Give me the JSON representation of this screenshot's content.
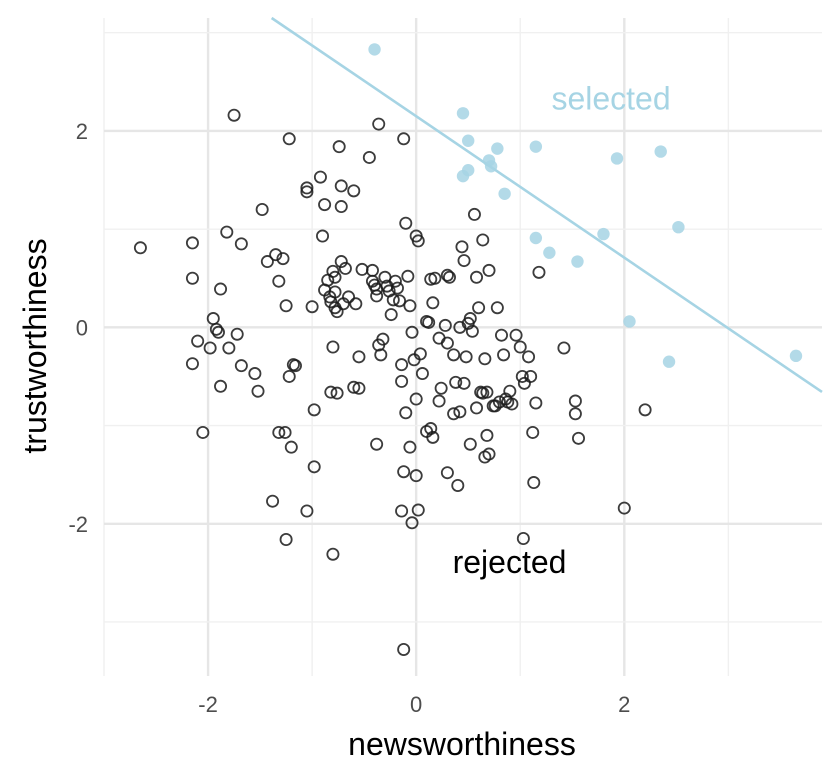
{
  "chart_data": {
    "type": "scatter",
    "xlabel": "newsworthiness",
    "ylabel": "trustworthiness",
    "xlim": [
      -3.0,
      3.9
    ],
    "ylim": [
      -3.55,
      3.15
    ],
    "x_ticks": [
      -2,
      0,
      2
    ],
    "y_ticks": [
      -2,
      0,
      2
    ],
    "x_tick_labels": [
      "-2",
      "0",
      "2"
    ],
    "y_tick_labels": [
      "-2",
      "0",
      "2"
    ],
    "grid": true,
    "colors": {
      "selected": "#a6d4e4",
      "rejected": "#1a1a1a",
      "line": "#a6d4e4"
    },
    "annotations": [
      {
        "text": "selected",
        "x": 1.3,
        "y": 2.22,
        "color": "#a6d4e4"
      },
      {
        "text": "rejected",
        "x": 0.35,
        "y": -2.5,
        "color": "#000000"
      }
    ],
    "threshold_line": {
      "intercept": 2.15,
      "slope": -0.72
    },
    "series": [
      {
        "name": "selected",
        "marker": "filled-circle",
        "points": [
          [
            -0.4,
            2.83
          ],
          [
            0.45,
            2.18
          ],
          [
            0.5,
            1.9
          ],
          [
            0.78,
            1.82
          ],
          [
            1.15,
            1.84
          ],
          [
            0.7,
            1.7
          ],
          [
            0.72,
            1.64
          ],
          [
            0.5,
            1.6
          ],
          [
            0.45,
            1.54
          ],
          [
            0.85,
            1.36
          ],
          [
            1.93,
            1.72
          ],
          [
            2.35,
            1.79
          ],
          [
            1.15,
            0.91
          ],
          [
            1.28,
            0.76
          ],
          [
            1.8,
            0.95
          ],
          [
            2.52,
            1.02
          ],
          [
            1.55,
            0.67
          ],
          [
            2.05,
            0.06
          ],
          [
            2.43,
            -0.35
          ],
          [
            3.65,
            -0.29
          ]
        ]
      },
      {
        "name": "rejected",
        "marker": "open-circle",
        "points": [
          [
            -2.65,
            0.81
          ],
          [
            -2.15,
            0.86
          ],
          [
            -2.15,
            0.5
          ],
          [
            -2.15,
            -0.37
          ],
          [
            -2.1,
            -0.14
          ],
          [
            -2.05,
            -1.07
          ],
          [
            -1.98,
            -0.21
          ],
          [
            -1.95,
            0.09
          ],
          [
            -1.92,
            -0.02
          ],
          [
            -1.9,
            -0.05
          ],
          [
            -1.88,
            0.39
          ],
          [
            -1.88,
            -0.6
          ],
          [
            -1.82,
            0.97
          ],
          [
            -1.8,
            -0.21
          ],
          [
            -1.75,
            2.16
          ],
          [
            -1.72,
            -0.07
          ],
          [
            -1.68,
            0.85
          ],
          [
            -1.68,
            -0.39
          ],
          [
            -1.55,
            -0.47
          ],
          [
            -1.52,
            -0.65
          ],
          [
            -1.48,
            1.2
          ],
          [
            -1.43,
            0.67
          ],
          [
            -1.35,
            0.74
          ],
          [
            -1.32,
            0.47
          ],
          [
            -1.28,
            0.7
          ],
          [
            -1.25,
            0.22
          ],
          [
            -1.22,
            1.92
          ],
          [
            -1.22,
            -0.5
          ],
          [
            -1.18,
            -0.38
          ],
          [
            -1.16,
            -0.39
          ],
          [
            -1.05,
            1.42
          ],
          [
            -1.05,
            1.38
          ],
          [
            -1.0,
            0.21
          ],
          [
            -0.92,
            1.53
          ],
          [
            -0.9,
            0.93
          ],
          [
            -0.88,
            1.25
          ],
          [
            -0.88,
            0.38
          ],
          [
            -0.85,
            0.48
          ],
          [
            -0.83,
            0.31
          ],
          [
            -0.82,
            0.26
          ],
          [
            -0.8,
            0.57
          ],
          [
            -0.78,
            0.51
          ],
          [
            -0.78,
            0.36
          ],
          [
            -0.78,
            0.2
          ],
          [
            -0.76,
            0.16
          ],
          [
            -0.74,
            1.84
          ],
          [
            -0.72,
            1.44
          ],
          [
            -0.72,
            1.23
          ],
          [
            -0.72,
            0.67
          ],
          [
            -0.7,
            0.24
          ],
          [
            -0.68,
            0.6
          ],
          [
            -0.65,
            0.31
          ],
          [
            -0.6,
            1.39
          ],
          [
            -0.58,
            0.24
          ],
          [
            -0.55,
            -0.3
          ],
          [
            -0.55,
            -0.62
          ],
          [
            -0.52,
            0.59
          ],
          [
            -0.45,
            1.73
          ],
          [
            -0.42,
            0.58
          ],
          [
            -0.42,
            0.47
          ],
          [
            -0.4,
            0.43
          ],
          [
            -0.38,
            0.39
          ],
          [
            -0.38,
            0.32
          ],
          [
            -0.36,
            2.07
          ],
          [
            -0.36,
            -0.18
          ],
          [
            -0.34,
            -0.28
          ],
          [
            -0.32,
            -0.12
          ],
          [
            -0.3,
            0.51
          ],
          [
            -0.28,
            0.42
          ],
          [
            -0.26,
            0.37
          ],
          [
            -0.24,
            0.13
          ],
          [
            -0.22,
            0.28
          ],
          [
            -0.2,
            0.47
          ],
          [
            -0.18,
            0.4
          ],
          [
            -0.16,
            0.27
          ],
          [
            -0.14,
            -0.38
          ],
          [
            -0.12,
            1.92
          ],
          [
            -0.1,
            1.06
          ],
          [
            -0.08,
            0.52
          ],
          [
            -0.06,
            0.22
          ],
          [
            -0.04,
            -0.05
          ],
          [
            -0.02,
            -0.33
          ],
          [
            0.0,
            0.93
          ],
          [
            0.02,
            0.88
          ],
          [
            0.04,
            -0.27
          ],
          [
            0.06,
            -0.47
          ],
          [
            0.1,
            0.06
          ],
          [
            0.12,
            0.05
          ],
          [
            0.14,
            0.49
          ],
          [
            0.16,
            0.25
          ],
          [
            0.18,
            0.5
          ],
          [
            0.22,
            -0.11
          ],
          [
            0.28,
            0.02
          ],
          [
            0.3,
            0.53
          ],
          [
            0.32,
            0.51
          ],
          [
            0.36,
            -0.28
          ],
          [
            0.38,
            -0.56
          ],
          [
            0.42,
            0.0
          ],
          [
            0.44,
            0.82
          ],
          [
            0.46,
            0.68
          ],
          [
            0.48,
            -0.3
          ],
          [
            0.5,
            0.04
          ],
          [
            0.52,
            0.09
          ],
          [
            0.54,
            -0.04
          ],
          [
            0.56,
            1.15
          ],
          [
            0.58,
            0.51
          ],
          [
            0.6,
            0.2
          ],
          [
            0.62,
            -0.66
          ],
          [
            0.64,
            0.89
          ],
          [
            0.66,
            -0.32
          ],
          [
            0.68,
            -0.66
          ],
          [
            0.7,
            0.58
          ],
          [
            0.74,
            -0.8
          ],
          [
            0.76,
            -0.8
          ],
          [
            0.78,
            0.2
          ],
          [
            0.8,
            -0.76
          ],
          [
            0.82,
            -0.08
          ],
          [
            0.84,
            -0.28
          ],
          [
            0.86,
            -0.73
          ],
          [
            0.88,
            -0.76
          ],
          [
            0.9,
            -0.65
          ],
          [
            0.92,
            -0.78
          ],
          [
            0.96,
            -0.08
          ],
          [
            1.0,
            -0.2
          ],
          [
            1.02,
            -0.5
          ],
          [
            1.04,
            -0.57
          ],
          [
            1.08,
            -0.3
          ],
          [
            1.1,
            -0.5
          ],
          [
            1.12,
            -1.07
          ],
          [
            1.15,
            -0.77
          ],
          [
            1.18,
            0.56
          ],
          [
            1.42,
            -0.21
          ],
          [
            1.53,
            -0.75
          ],
          [
            1.53,
            -0.88
          ],
          [
            1.56,
            -1.13
          ],
          [
            2.2,
            -0.84
          ],
          [
            2.0,
            -1.84
          ],
          [
            1.03,
            -2.15
          ],
          [
            1.13,
            -1.58
          ],
          [
            0.52,
            -1.19
          ],
          [
            0.7,
            -1.29
          ],
          [
            0.66,
            -1.32
          ],
          [
            0.68,
            -1.1
          ],
          [
            0.4,
            -1.61
          ],
          [
            0.3,
            -1.48
          ],
          [
            0.16,
            -1.12
          ],
          [
            0.1,
            -1.06
          ],
          [
            0.14,
            -1.03
          ],
          [
            0.0,
            -1.51
          ],
          [
            0.02,
            -1.86
          ],
          [
            -0.04,
            -1.99
          ],
          [
            -0.14,
            -1.87
          ],
          [
            -0.12,
            -1.47
          ],
          [
            -0.06,
            -1.22
          ],
          [
            -0.38,
            -1.19
          ],
          [
            -0.8,
            -2.31
          ],
          [
            -1.05,
            -1.87
          ],
          [
            -1.25,
            -2.16
          ],
          [
            -1.38,
            -1.77
          ],
          [
            -1.32,
            -1.07
          ],
          [
            -1.26,
            -1.07
          ],
          [
            -1.2,
            -1.22
          ],
          [
            -0.98,
            -1.42
          ],
          [
            -0.98,
            -0.84
          ],
          [
            -0.82,
            -0.66
          ],
          [
            -0.76,
            -0.67
          ],
          [
            -0.8,
            -0.2
          ],
          [
            -0.6,
            -0.61
          ],
          [
            -0.14,
            -0.55
          ],
          [
            -0.1,
            -0.87
          ],
          [
            0.0,
            -0.73
          ],
          [
            0.24,
            -0.62
          ],
          [
            0.36,
            -0.88
          ],
          [
            0.42,
            -0.86
          ],
          [
            -0.12,
            -3.28
          ],
          [
            0.22,
            -0.75
          ],
          [
            0.3,
            -0.16
          ],
          [
            0.46,
            -0.57
          ],
          [
            0.58,
            -0.82
          ],
          [
            0.64,
            -0.67
          ]
        ]
      }
    ]
  }
}
